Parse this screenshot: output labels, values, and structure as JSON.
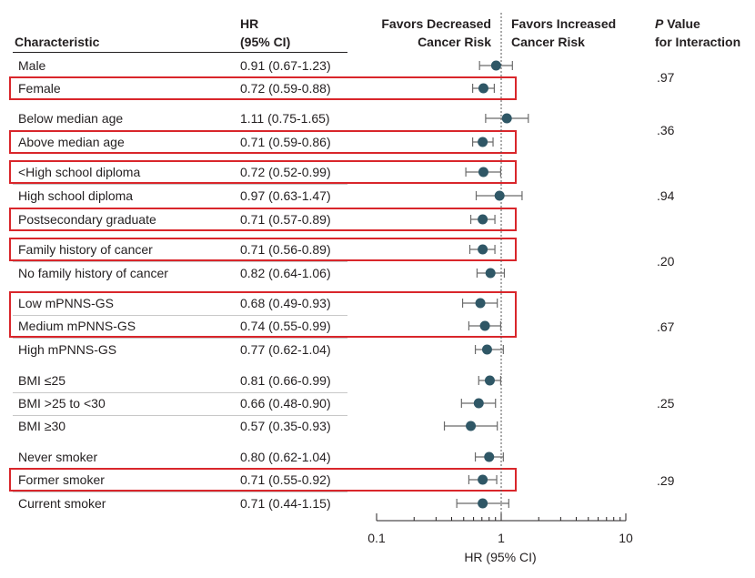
{
  "headers": {
    "characteristic": "Characteristic",
    "hr_line1": "HR",
    "hr_line2": "(95% CI)",
    "favors_decreased_1": "Favors Decreased",
    "favors_decreased_2": "Cancer Risk",
    "favors_increased_1": "Favors Increased",
    "favors_increased_2": "Cancer Risk",
    "p_line1_italic": "P",
    "p_line1_rest": " Value",
    "p_line2": "for Interaction"
  },
  "chart_data": {
    "type": "forest",
    "x_scale": "log",
    "xlim": [
      0.1,
      10
    ],
    "x_ticks": [
      0.1,
      1,
      10
    ],
    "x_tick_labels": [
      "0.1",
      "1",
      "10"
    ],
    "xlabel": "HR (95% CI)",
    "reference_line": 1,
    "point_color": "#2f5766",
    "highlight_color": "#d9262b",
    "rows": [
      {
        "label": "Male",
        "hr_text": "0.91 (0.67-1.23)",
        "hr": 0.91,
        "lo": 0.67,
        "hi": 1.23,
        "highlighted": false
      },
      {
        "label": "Female",
        "hr_text": "0.72 (0.59-0.88)",
        "hr": 0.72,
        "lo": 0.59,
        "hi": 0.88,
        "highlighted": true
      },
      {
        "label": "Below median age",
        "hr_text": "1.11 (0.75-1.65)",
        "hr": 1.11,
        "lo": 0.75,
        "hi": 1.65,
        "highlighted": false
      },
      {
        "label": "Above median age",
        "hr_text": "0.71 (0.59-0.86)",
        "hr": 0.71,
        "lo": 0.59,
        "hi": 0.86,
        "highlighted": true
      },
      {
        "label": "<High school diploma",
        "hr_text": "0.72 (0.52-0.99)",
        "hr": 0.72,
        "lo": 0.52,
        "hi": 0.99,
        "highlighted": true
      },
      {
        "label": "High school diploma",
        "hr_text": "0.97 (0.63-1.47)",
        "hr": 0.97,
        "lo": 0.63,
        "hi": 1.47,
        "highlighted": false
      },
      {
        "label": "Postsecondary graduate",
        "hr_text": "0.71 (0.57-0.89)",
        "hr": 0.71,
        "lo": 0.57,
        "hi": 0.89,
        "highlighted": true
      },
      {
        "label": "Family history of cancer",
        "hr_text": "0.71 (0.56-0.89)",
        "hr": 0.71,
        "lo": 0.56,
        "hi": 0.89,
        "highlighted": true
      },
      {
        "label": "No family history of cancer",
        "hr_text": "0.82 (0.64-1.06)",
        "hr": 0.82,
        "lo": 0.64,
        "hi": 1.06,
        "highlighted": false
      },
      {
        "label": "Low mPNNS-GS",
        "hr_text": "0.68 (0.49-0.93)",
        "hr": 0.68,
        "lo": 0.49,
        "hi": 0.93,
        "highlighted": true
      },
      {
        "label": "Medium mPNNS-GS",
        "hr_text": "0.74 (0.55-0.99)",
        "hr": 0.74,
        "lo": 0.55,
        "hi": 0.99,
        "highlighted": true
      },
      {
        "label": "High mPNNS-GS",
        "hr_text": "0.77 (0.62-1.04)",
        "hr": 0.77,
        "lo": 0.62,
        "hi": 1.04,
        "highlighted": false
      },
      {
        "label": "BMI ≤25",
        "hr_text": "0.81 (0.66-0.99)",
        "hr": 0.81,
        "lo": 0.66,
        "hi": 0.99,
        "highlighted": false
      },
      {
        "label": "BMI >25 to <30",
        "hr_text": "0.66 (0.48-0.90)",
        "hr": 0.66,
        "lo": 0.48,
        "hi": 0.9,
        "highlighted": false
      },
      {
        "label": "BMI ≥30",
        "hr_text": "0.57 (0.35-0.93)",
        "hr": 0.57,
        "lo": 0.35,
        "hi": 0.93,
        "highlighted": false
      },
      {
        "label": "Never smoker",
        "hr_text": "0.80 (0.62-1.04)",
        "hr": 0.8,
        "lo": 0.62,
        "hi": 1.04,
        "highlighted": false
      },
      {
        "label": "Former smoker",
        "hr_text": "0.71 (0.55-0.92)",
        "hr": 0.71,
        "lo": 0.55,
        "hi": 0.92,
        "highlighted": true
      },
      {
        "label": "Current smoker",
        "hr_text": "0.71 (0.44-1.15)",
        "hr": 0.71,
        "lo": 0.44,
        "hi": 1.15,
        "highlighted": false
      }
    ],
    "groups": [
      {
        "p_value": ".97"
      },
      {
        "p_value": ".36"
      },
      {
        "p_value": ".94"
      },
      {
        "p_value": ".20"
      },
      {
        "p_value": ".67"
      },
      {
        "p_value": ".25"
      },
      {
        "p_value": ".29"
      }
    ]
  }
}
